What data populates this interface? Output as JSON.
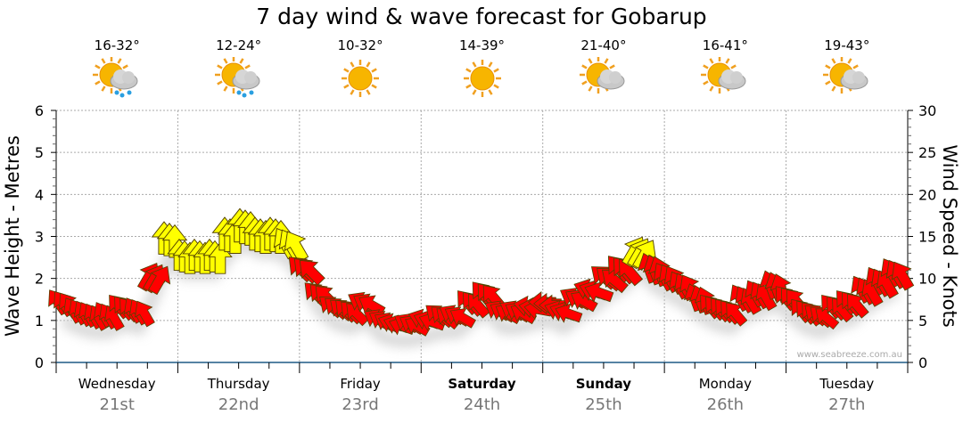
{
  "title": "7 day wind & wave forecast for Gobarup",
  "watermark": "www.seabreeze.com.au",
  "days": [
    {
      "name": "Wednesday",
      "date": "21st",
      "bold": false,
      "temp": "16-32°",
      "icon": "sun-cloud-rain-icon"
    },
    {
      "name": "Thursday",
      "date": "22nd",
      "bold": false,
      "temp": "12-24°",
      "icon": "sun-cloud-rain-icon"
    },
    {
      "name": "Friday",
      "date": "23rd",
      "bold": false,
      "temp": "10-32°",
      "icon": "sun-icon"
    },
    {
      "name": "Saturday",
      "date": "24th",
      "bold": true,
      "temp": "14-39°",
      "icon": "sun-icon"
    },
    {
      "name": "Sunday",
      "date": "25th",
      "bold": true,
      "temp": "21-40°",
      "icon": "sun-cloud-icon"
    },
    {
      "name": "Monday",
      "date": "26th",
      "bold": false,
      "temp": "16-41°",
      "icon": "sun-cloud-icon"
    },
    {
      "name": "Tuesday",
      "date": "27th",
      "bold": false,
      "temp": "19-43°",
      "icon": "sun-cloud-icon"
    }
  ],
  "colors": {
    "strong": "#ffff00",
    "light": "#ff0000",
    "axis": "#1f5a85"
  },
  "chart_data": {
    "type": "scatter",
    "title": "7 day wind & wave forecast for Gobarup",
    "ylabel_left": "Wave Height - Metres",
    "ylabel_right": "Wind Speed - Knots",
    "ylim_left": [
      0,
      6
    ],
    "ylim_right": [
      0,
      30
    ],
    "yticks_left": [
      "0",
      "1",
      "2",
      "3",
      "4",
      "5",
      "6"
    ],
    "yticks_right": [
      "0",
      "5",
      "10",
      "15",
      "20",
      "25",
      "30"
    ],
    "interval_hours": 3,
    "threshold_knots": 12,
    "wind_speed_knots": [
      7,
      6,
      5.5,
      5.5,
      6.5,
      6,
      10,
      14.5,
      12.5,
      12.5,
      12.5,
      15,
      16,
      15,
      15,
      14,
      11,
      8,
      6.5,
      6,
      7,
      5,
      4.5,
      4.5,
      5,
      5.5,
      5.5,
      7,
      8,
      6,
      6,
      6.5,
      7,
      6,
      7.5,
      8.5,
      10,
      11,
      13,
      11,
      10,
      9,
      7.5,
      6.5,
      6,
      7.5,
      8,
      9,
      7.5,
      6,
      5.5,
      6.5,
      7,
      8.5,
      9.5,
      10.5
    ],
    "wind_dir_deg": [
      -35,
      -30,
      -30,
      -30,
      -40,
      -30,
      30,
      0,
      0,
      0,
      0,
      0,
      0,
      0,
      0,
      -30,
      -45,
      -45,
      -50,
      -45,
      -60,
      -60,
      -70,
      -60,
      -70,
      -50,
      -60,
      -40,
      -40,
      -60,
      -60,
      -80,
      -90,
      -70,
      -60,
      -70,
      -50,
      -40,
      30,
      -20,
      -30,
      -30,
      -20,
      -40,
      -40,
      -30,
      -30,
      -20,
      -40,
      -40,
      -50,
      -40,
      -40,
      -30,
      -30,
      -30
    ],
    "grid": true
  }
}
